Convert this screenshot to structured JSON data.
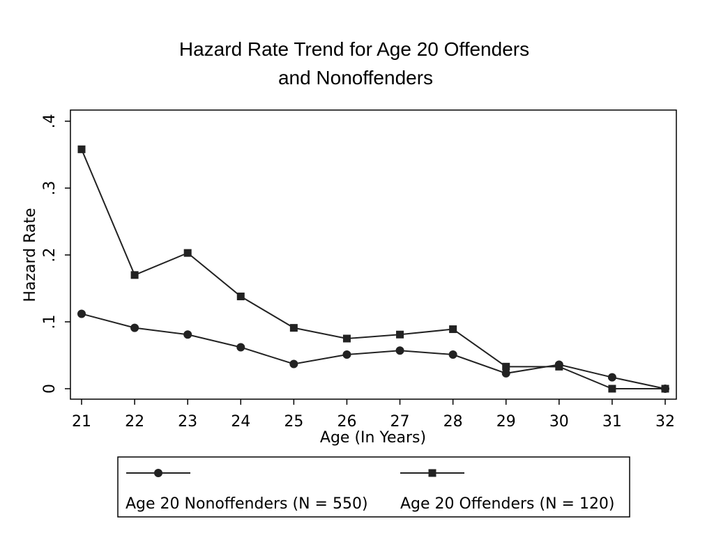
{
  "chart_data": {
    "type": "line",
    "title": [
      "Hazard Rate Trend for Age 20 Offenders",
      "and Nonoffenders"
    ],
    "xlabel": "Age (In Years)",
    "ylabel": "Hazard Rate",
    "xlim": [
      21,
      32
    ],
    "ylim": [
      0,
      0.4
    ],
    "x": [
      21,
      22,
      23,
      24,
      25,
      26,
      27,
      28,
      29,
      30,
      31,
      32
    ],
    "x_tick_labels": [
      "21",
      "22",
      "23",
      "24",
      "25",
      "26",
      "27",
      "28",
      "29",
      "30",
      "31",
      "32"
    ],
    "y_ticks": [
      0,
      0.1,
      0.2,
      0.3,
      0.4
    ],
    "y_tick_labels": [
      "0",
      ".1",
      ".2",
      ".3",
      ".4"
    ],
    "grid": false,
    "legend_position": "bottom",
    "series": [
      {
        "name": "Age 20 Nonoffenders (N = 550)",
        "marker": "circle",
        "color": "#222222",
        "values": [
          0.112,
          0.091,
          0.081,
          0.062,
          0.037,
          0.051,
          0.057,
          0.051,
          0.023,
          0.036,
          0.017,
          0.0
        ]
      },
      {
        "name": "Age 20 Offenders (N = 120)",
        "marker": "square",
        "color": "#222222",
        "values": [
          0.358,
          0.17,
          0.203,
          0.138,
          0.091,
          0.075,
          0.081,
          0.089,
          0.033,
          0.033,
          0.0,
          0.0
        ]
      }
    ]
  }
}
